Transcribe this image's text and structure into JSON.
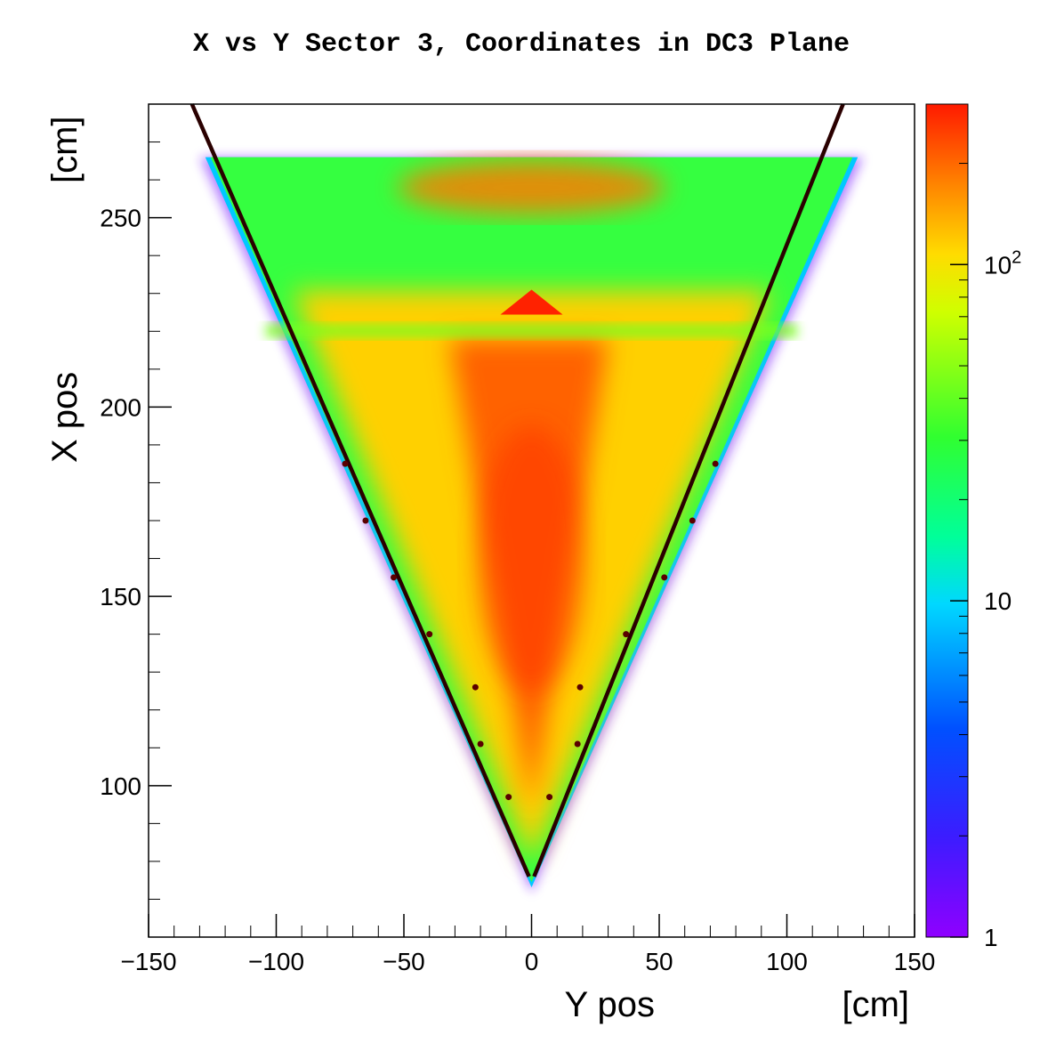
{
  "chart_data": {
    "type": "heatmap",
    "title": "X vs Y Sector 3, Coordinates in DC3 Plane",
    "xlabel": "Y pos",
    "ylabel": "X pos",
    "xunit": "[cm]",
    "yunit": "[cm]",
    "xlim": [
      -150,
      150
    ],
    "ylim": [
      60,
      280
    ],
    "xticks": [
      -150,
      -100,
      -50,
      0,
      50,
      100,
      150
    ],
    "yticks": [
      100,
      150,
      200,
      250
    ],
    "colorbar": {
      "scale": "log",
      "range": [
        1,
        300
      ],
      "ticks": [
        {
          "value": 1,
          "base": "1",
          "exp": ""
        },
        {
          "value": 10,
          "base": "10",
          "exp": ""
        },
        {
          "value": 100,
          "base": "10",
          "exp": "2"
        }
      ]
    },
    "acceptance_region": {
      "apex": [
        0,
        75
      ],
      "top_y": 266,
      "top_left_x": -125,
      "top_right_x": 125
    },
    "fit_lines": [
      {
        "points": [
          [
            -133,
            280
          ],
          [
            -1,
            76
          ]
        ]
      },
      {
        "points": [
          [
            1,
            76
          ],
          [
            122,
            280
          ]
        ]
      }
    ],
    "edge_points_left": [
      {
        "x": -73,
        "y": 185
      },
      {
        "x": -65,
        "y": 170
      },
      {
        "x": -54,
        "y": 155
      },
      {
        "x": -40,
        "y": 140
      },
      {
        "x": -22,
        "y": 126
      },
      {
        "x": -20,
        "y": 111
      },
      {
        "x": -9,
        "y": 97
      }
    ],
    "edge_points_right": [
      {
        "x": 72,
        "y": 185
      },
      {
        "x": 63,
        "y": 170
      },
      {
        "x": 52,
        "y": 155
      },
      {
        "x": 37,
        "y": 140
      },
      {
        "x": 19,
        "y": 126
      },
      {
        "x": 18,
        "y": 111
      },
      {
        "x": 7,
        "y": 97
      }
    ],
    "colors": {
      "frame": "#000000",
      "fit_line": "#2a0000",
      "marker": "#5a0000"
    }
  }
}
